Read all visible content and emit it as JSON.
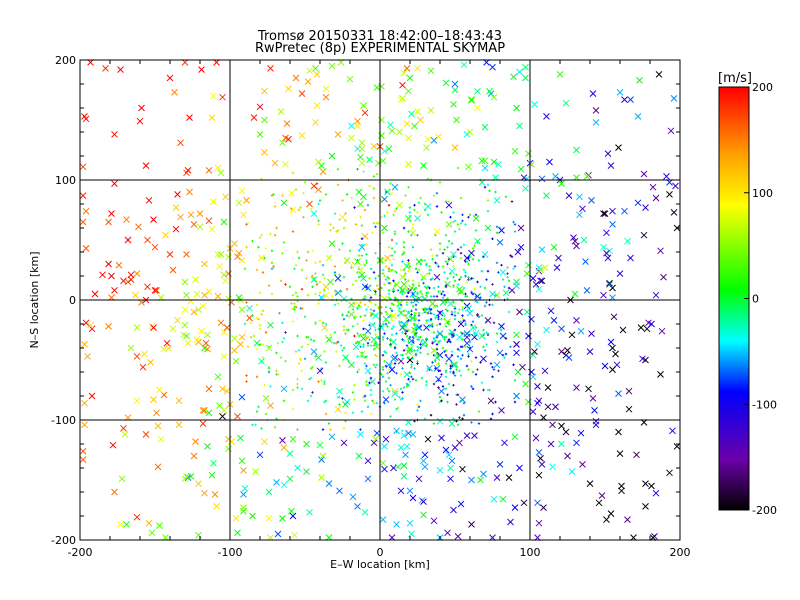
{
  "chart_data": {
    "type": "scatter",
    "title": "Tromsø 20150331 18:42:00–18:43:43",
    "subtitle": "RwPretec (8p) EXPERIMENTAL SKYMAP",
    "xlabel": "E–W location [km]",
    "ylabel": "N–S location [km]",
    "xlim": [
      -200,
      200
    ],
    "ylim": [
      -200,
      200
    ],
    "xticks": [
      -200,
      -100,
      0,
      100,
      200
    ],
    "yticks": [
      -200,
      -100,
      0,
      100,
      200
    ],
    "grid": true,
    "point_count_estimate": 2000,
    "colorbar": {
      "label": "[m/s]",
      "range": [
        -200,
        200
      ],
      "ticks": [
        200,
        100,
        0,
        -100,
        -200
      ],
      "colors": [
        "#000000",
        "#6a00a8",
        "#0000ff",
        "#00ffff",
        "#00ff00",
        "#ffff00",
        "#ffa000",
        "#ff0000"
      ]
    },
    "marker_types": [
      "x",
      "+"
    ],
    "points": [
      [
        -128,
        -148,
        -83
      ],
      [
        23,
        -27,
        -26
      ],
      [
        -63,
        -51,
        30
      ],
      [
        2,
        -58,
        -15
      ],
      [
        -73,
        -72,
        -49
      ],
      [
        -53,
        -7,
        -61
      ],
      [
        2,
        25,
        -51
      ],
      [
        49,
        -54,
        6
      ],
      [
        -19,
        1,
        10
      ],
      [
        -18,
        -8,
        -24
      ],
      [
        -63,
        -27,
        -143
      ],
      [
        142,
        -82,
        -147
      ],
      [
        69,
        -145,
        -71
      ],
      [
        -24,
        60,
        43
      ],
      [
        105,
        -169,
        -79
      ],
      [
        -48,
        -37,
        61
      ],
      [
        -91,
        -162,
        -69
      ],
      [
        82,
        -166,
        -6
      ],
      [
        -14,
        41,
        -32
      ],
      [
        -129,
        -30,
        25
      ],
      [
        -44,
        18,
        2
      ],
      [
        40,
        -101,
        -38
      ],
      [
        -80,
        -129,
        -89
      ],
      [
        -50,
        -49,
        -68
      ],
      [
        -14,
        -130,
        -12
      ],
      [
        -101,
        -116,
        132
      ],
      [
        -58,
        106,
        106
      ],
      [
        11,
        -110,
        -39
      ],
      [
        -12,
        -45,
        53
      ],
      [
        45,
        18,
        -30
      ],
      [
        -19,
        145,
        -48
      ],
      [
        -34,
        -153,
        -75
      ],
      [
        109,
        -173,
        -177
      ],
      [
        -41,
        66,
        -32
      ],
      [
        -45,
        11,
        -5
      ],
      [
        -8,
        10,
        -76
      ],
      [
        45,
        -9,
        -5
      ],
      [
        44,
        -74,
        -17
      ],
      [
        -38,
        -108,
        -112
      ],
      [
        -74,
        -39,
        -25
      ],
      [
        -18,
        31,
        55
      ],
      [
        106,
        -127,
        -80
      ],
      [
        -44,
        72,
        -42
      ],
      [
        16,
        60,
        -102
      ],
      [
        16,
        -113,
        -52
      ],
      [
        -92,
        -81,
        -88
      ],
      [
        -65,
        -117,
        -150
      ],
      [
        -24,
        -16,
        -75
      ],
      [
        2,
        -136,
        38
      ],
      [
        -22,
        -85,
        -53
      ],
      [
        -45,
        -77,
        -149
      ],
      [
        -69,
        -99,
        -16
      ],
      [
        -21,
        -51,
        -10
      ],
      [
        62,
        -60,
        -3
      ],
      [
        8,
        89,
        83
      ],
      [
        8,
        -29,
        -43
      ],
      [
        90,
        -173,
        -101
      ],
      [
        -18,
        -94,
        -41
      ],
      [
        -64,
        -154,
        -50
      ],
      [
        128,
        -143,
        -53
      ],
      [
        72,
        74,
        -56
      ],
      [
        19,
        -71,
        -8
      ],
      [
        44,
        -59,
        -14
      ],
      [
        -10,
        11,
        -85
      ],
      [
        -15,
        33,
        -78
      ],
      [
        61,
        -21,
        -169
      ],
      [
        -13,
        -108,
        -90
      ],
      [
        -85,
        -104,
        -33
      ],
      [
        -4,
        64,
        43
      ],
      [
        14,
        -19,
        16
      ],
      [
        -32,
        -114,
        -67
      ],
      [
        -24,
        -119,
        -135
      ],
      [
        47,
        -35,
        -91
      ],
      [
        -65,
        -35,
        -46
      ],
      [
        -105,
        -97,
        -190
      ],
      [
        -60,
        -128,
        -27
      ],
      [
        -13,
        -39,
        -68
      ],
      [
        112,
        -89,
        -180
      ],
      [
        54,
        -170,
        -95
      ],
      [
        50,
        -123,
        -129
      ]
    ]
  }
}
